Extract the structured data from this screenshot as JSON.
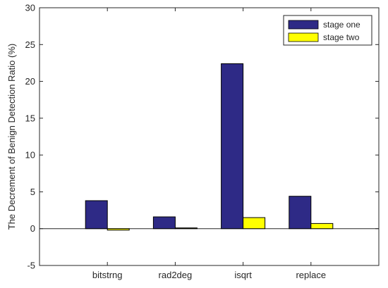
{
  "chart_data": {
    "type": "bar",
    "categories": [
      "bitstrng",
      "rad2deg",
      "isqrt",
      "replace"
    ],
    "series": [
      {
        "name": "stage one",
        "values": [
          3.8,
          1.6,
          22.4,
          4.4
        ],
        "color": "#2E2A86"
      },
      {
        "name": "stage two",
        "values": [
          -0.2,
          0.1,
          1.5,
          0.7
        ],
        "color": "#FFFF00"
      }
    ],
    "title": "",
    "xlabel": "",
    "ylabel": "The Decrement of Benign Detection Ratio (%)",
    "ylim": [
      -5,
      30
    ],
    "yticks": [
      -5,
      0,
      5,
      10,
      15,
      20,
      25,
      30
    ],
    "ytick_labels": [
      "-5",
      "0",
      "5",
      "10",
      "15",
      "20",
      "25",
      "30"
    ],
    "grid": false,
    "legend_position": "top-right",
    "zero_line": true
  }
}
